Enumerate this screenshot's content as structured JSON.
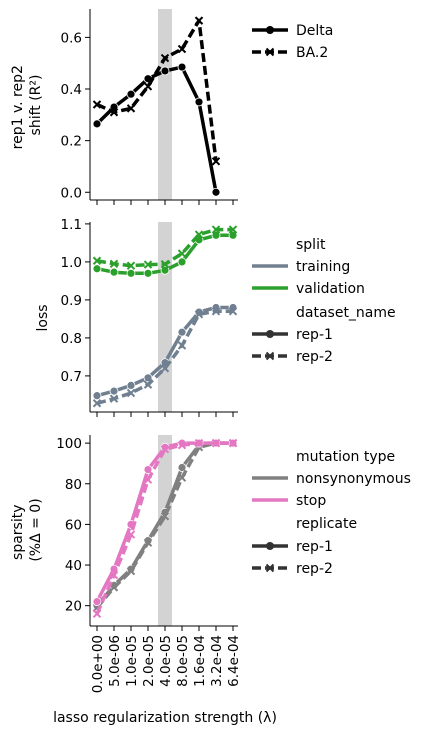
{
  "chart_data": [
    {
      "type": "line",
      "panel": "top",
      "x": [
        "0.0e+00",
        "5.0e-06",
        "1.0e-05",
        "2.0e-05",
        "4.0e-05",
        "8.0e-05",
        "1.6e-04",
        "3.2e-04",
        "6.4e-04"
      ],
      "highlight_x": "4.0e-05",
      "ylabel_lines": [
        "rep1 v. rep2",
        "shift (R²)"
      ],
      "ylim": [
        -0.03,
        0.71
      ],
      "yticks": [
        0.0,
        0.2,
        0.4,
        0.6
      ],
      "ytick_labels": [
        "0.0",
        "0.2",
        "0.4",
        "0.6"
      ],
      "legend": [
        {
          "label": "Delta",
          "dash": "solid",
          "marker": "circle"
        },
        {
          "label": "BA.2",
          "dash": "dashed",
          "marker": "x"
        }
      ],
      "series": [
        {
          "name": "Delta",
          "color": "#000000",
          "dash": "solid",
          "marker": "circle",
          "values": [
            0.265,
            0.33,
            0.38,
            0.44,
            0.47,
            0.485,
            0.35,
            0.0,
            null
          ]
        },
        {
          "name": "BA.2",
          "color": "#000000",
          "dash": "dashed",
          "marker": "x",
          "values": [
            0.34,
            0.31,
            0.325,
            0.41,
            0.52,
            0.555,
            0.665,
            0.12,
            null
          ]
        }
      ]
    },
    {
      "type": "line",
      "panel": "middle",
      "x": [
        "0.0e+00",
        "5.0e-06",
        "1.0e-05",
        "2.0e-05",
        "4.0e-05",
        "8.0e-05",
        "1.6e-04",
        "3.2e-04",
        "6.4e-04"
      ],
      "highlight_x": "4.0e-05",
      "ylabel": "loss",
      "ylim": [
        0.605,
        1.105
      ],
      "yticks": [
        0.7,
        0.8,
        0.9,
        1.0,
        1.1
      ],
      "ytick_labels": [
        "0.7",
        "0.8",
        "0.9",
        "1.0",
        "1.1"
      ],
      "legend_titles": [
        "split",
        "dataset_name"
      ],
      "legend": [
        {
          "group": "split",
          "label": "training",
          "color": "#708090"
        },
        {
          "group": "split",
          "label": "validation",
          "color": "#2ca02c"
        },
        {
          "group": "dataset_name",
          "label": "rep-1",
          "dash": "solid",
          "marker": "circle"
        },
        {
          "group": "dataset_name",
          "label": "rep-2",
          "dash": "dashed",
          "marker": "x"
        }
      ],
      "series": [
        {
          "split": "training",
          "dataset": "rep-1",
          "color": "#708090",
          "dash": "solid",
          "marker": "circle",
          "values": [
            0.648,
            0.66,
            0.675,
            0.695,
            0.735,
            0.815,
            0.868,
            0.88,
            0.88
          ]
        },
        {
          "split": "training",
          "dataset": "rep-2",
          "color": "#708090",
          "dash": "dashed",
          "marker": "x",
          "values": [
            0.628,
            0.64,
            0.655,
            0.677,
            0.72,
            0.78,
            0.862,
            0.87,
            0.87
          ]
        },
        {
          "split": "validation",
          "dataset": "rep-1",
          "color": "#2ca02c",
          "dash": "solid",
          "marker": "circle",
          "values": [
            0.982,
            0.973,
            0.97,
            0.97,
            0.978,
            1.0,
            1.058,
            1.07,
            1.07
          ]
        },
        {
          "split": "validation",
          "dataset": "rep-2",
          "color": "#2ca02c",
          "dash": "dashed",
          "marker": "x",
          "values": [
            1.003,
            0.995,
            0.99,
            0.993,
            0.994,
            1.022,
            1.072,
            1.085,
            1.085
          ]
        }
      ]
    },
    {
      "type": "line",
      "panel": "bottom",
      "x": [
        "0.0e+00",
        "5.0e-06",
        "1.0e-05",
        "2.0e-05",
        "4.0e-05",
        "8.0e-05",
        "1.6e-04",
        "3.2e-04",
        "6.4e-04"
      ],
      "highlight_x": "4.0e-05",
      "ylabel_lines": [
        "sparsity",
        "(%Δ = 0)"
      ],
      "ylim": [
        10,
        104
      ],
      "yticks": [
        20,
        40,
        60,
        80,
        100
      ],
      "ytick_labels": [
        "20",
        "40",
        "60",
        "80",
        "100"
      ],
      "xlabel": "lasso regularization strength (λ)",
      "legend_titles": [
        "mutation type",
        "replicate"
      ],
      "legend": [
        {
          "group": "mutation type",
          "label": "nonsynonymous",
          "color": "#808080"
        },
        {
          "group": "mutation type",
          "label": "stop",
          "color": "#e377c2"
        },
        {
          "group": "replicate",
          "label": "rep-1",
          "dash": "solid",
          "marker": "circle"
        },
        {
          "group": "replicate",
          "label": "rep-2",
          "dash": "dashed",
          "marker": "x"
        }
      ],
      "series": [
        {
          "mutation": "nonsynonymous",
          "replicate": "rep-1",
          "color": "#808080",
          "dash": "solid",
          "marker": "circle",
          "values": [
            20,
            30,
            38,
            52,
            66,
            88,
            99,
            100,
            100
          ]
        },
        {
          "mutation": "nonsynonymous",
          "replicate": "rep-2",
          "color": "#808080",
          "dash": "dashed",
          "marker": "x",
          "values": [
            19,
            29,
            37,
            51,
            64,
            83,
            98,
            100,
            100
          ]
        },
        {
          "mutation": "stop",
          "replicate": "rep-1",
          "color": "#e377c2",
          "dash": "solid",
          "marker": "circle",
          "values": [
            22,
            38,
            60,
            87,
            98,
            100,
            100,
            100,
            100
          ]
        },
        {
          "mutation": "stop",
          "replicate": "rep-2",
          "color": "#e377c2",
          "dash": "dashed",
          "marker": "x",
          "values": [
            16,
            35,
            55,
            82,
            97,
            99,
            100,
            100,
            100
          ]
        }
      ]
    }
  ]
}
